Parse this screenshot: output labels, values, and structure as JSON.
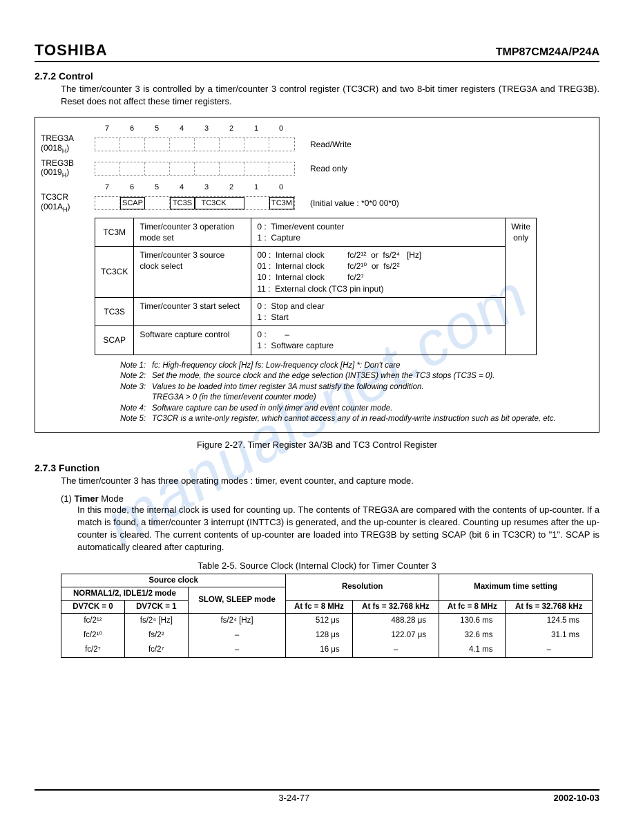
{
  "header": {
    "brand": "TOSHIBA",
    "part": "TMP87CM24A/P24A"
  },
  "sec272": {
    "num": "2.7.2 Control",
    "text": "The timer/counter 3 is controlled by a timer/counter 3 control register (TC3CR) and two 8-bit timer registers (TREG3A and TREG3B).  Reset does not affect these timer registers."
  },
  "regs": {
    "treg3a": {
      "name": "TREG3A",
      "addr": "(0018",
      "addrsub": "H",
      "addrend": ")",
      "after": "Read/Write"
    },
    "treg3b": {
      "name": "TREG3B",
      "addr": "(0019",
      "addrsub": "H",
      "addrend": ")",
      "after": "Read only"
    },
    "tc3cr": {
      "name": "TC3CR",
      "addr": "(001A",
      "addrsub": "H",
      "addrend": ")",
      "after": "(Initial value :    *0*0 00*0)"
    },
    "bits": [
      "7",
      "6",
      "5",
      "4",
      "3",
      "2",
      "1",
      "0"
    ],
    "tc3cr_cells": [
      "",
      "SCAP",
      "",
      "TC3S",
      "TC3CK",
      "",
      "",
      "TC3M"
    ]
  },
  "ctl": {
    "side": "Write only",
    "rows": [
      {
        "name": "TC3M",
        "desc": "Timer/counter 3 operation mode set",
        "val": "0 :  Timer/event counter\n1 :  Capture"
      },
      {
        "name": "TC3CK",
        "desc": "Timer/counter 3 source clock select",
        "val": "00 :  Internal clock          fc/2¹²  or  fs/2⁴   [Hz]\n01 :  Internal clock          fc/2¹⁰  or  fs/2²\n10 :  Internal clock          fc/2⁷\n11 :  External clock (TC3 pin input)"
      },
      {
        "name": "TC3S",
        "desc": "Timer/counter 3 start select",
        "val": "0 :  Stop and clear\n1 :  Start"
      },
      {
        "name": "SCAP",
        "desc": "Software capture control",
        "val": "0 :        –\n1 :  Software capture"
      }
    ]
  },
  "notes": [
    {
      "tag": "Note 1:",
      "text": "fc: High-frequency clock [Hz]    fs: Low-frequency clock [Hz]    *: Don't care"
    },
    {
      "tag": "Note 2:",
      "text": "Set the mode, the source clock and the edge selection (INT3ES) when the TC3 stops (TC3S = 0)."
    },
    {
      "tag": "Note 3:",
      "text": "Values to be loaded into timer register 3A must satisfy the following condition.\n          TREG3A > 0 (in the timer/event counter mode)"
    },
    {
      "tag": "Note 4:",
      "text": "Software capture can be used in only timer and event counter mode."
    },
    {
      "tag": "Note 5:",
      "text": "TC3CR is a write-only register, which cannot access any of in read-modify-write instruction such as bit operate, etc."
    }
  ],
  "fig_caption": "Figure 2-27.   Timer Register 3A/3B and TC3 Control Register",
  "sec273": {
    "num": "2.7.3 Function",
    "text": "The timer/counter 3 has three operating modes : timer, event counter, and capture mode.",
    "sub_t": "(1)   Timer Mode",
    "sub_b": "In this mode, the internal clock is used for counting up.  The contents of TREG3A are compared with the contents of up-counter.  If a match is found, a timer/counter 3 interrupt (INTTC3) is generated, and the up-counter is cleared.  Counting up resumes after the up-counter is cleared.  The current contents of up-counter are loaded into TREG3B by setting SCAP (bit 6 in TC3CR) to \"1\".  SCAP is automatically cleared after capturing."
  },
  "table25": {
    "caption": "Table 2-5.   Source Clock (Internal Clock) for Timer Counter 3",
    "head": {
      "src": "Source clock",
      "res": "Resolution",
      "max": "Maximum time setting",
      "normal": "NORMAL1/2,  IDLE1/2 mode",
      "slow": "SLOW, SLEEP mode",
      "dv0": "DV7CK = 0",
      "dv1": "DV7CK = 1",
      "fc8": "At fc = 8 MHz",
      "fs32": "At fs = 32.768 kHz"
    },
    "rows": [
      [
        "fc/2¹²",
        "fs/2⁴ [Hz]",
        "fs/2⁴  [Hz]",
        "512    μs",
        "488.28  μs",
        "130.6   ms",
        "124.5   ms"
      ],
      [
        "fc/2¹⁰",
        "fs/2²",
        "–",
        "128    μs",
        "122.07  μs",
        "32.6   ms",
        "31.1   ms"
      ],
      [
        "fc/2⁷",
        "fc/2⁷",
        "–",
        "16    μs",
        "–",
        "4.1   ms",
        "–"
      ]
    ]
  },
  "footer": {
    "page": "3-24-77",
    "date": "2002-10-03"
  }
}
